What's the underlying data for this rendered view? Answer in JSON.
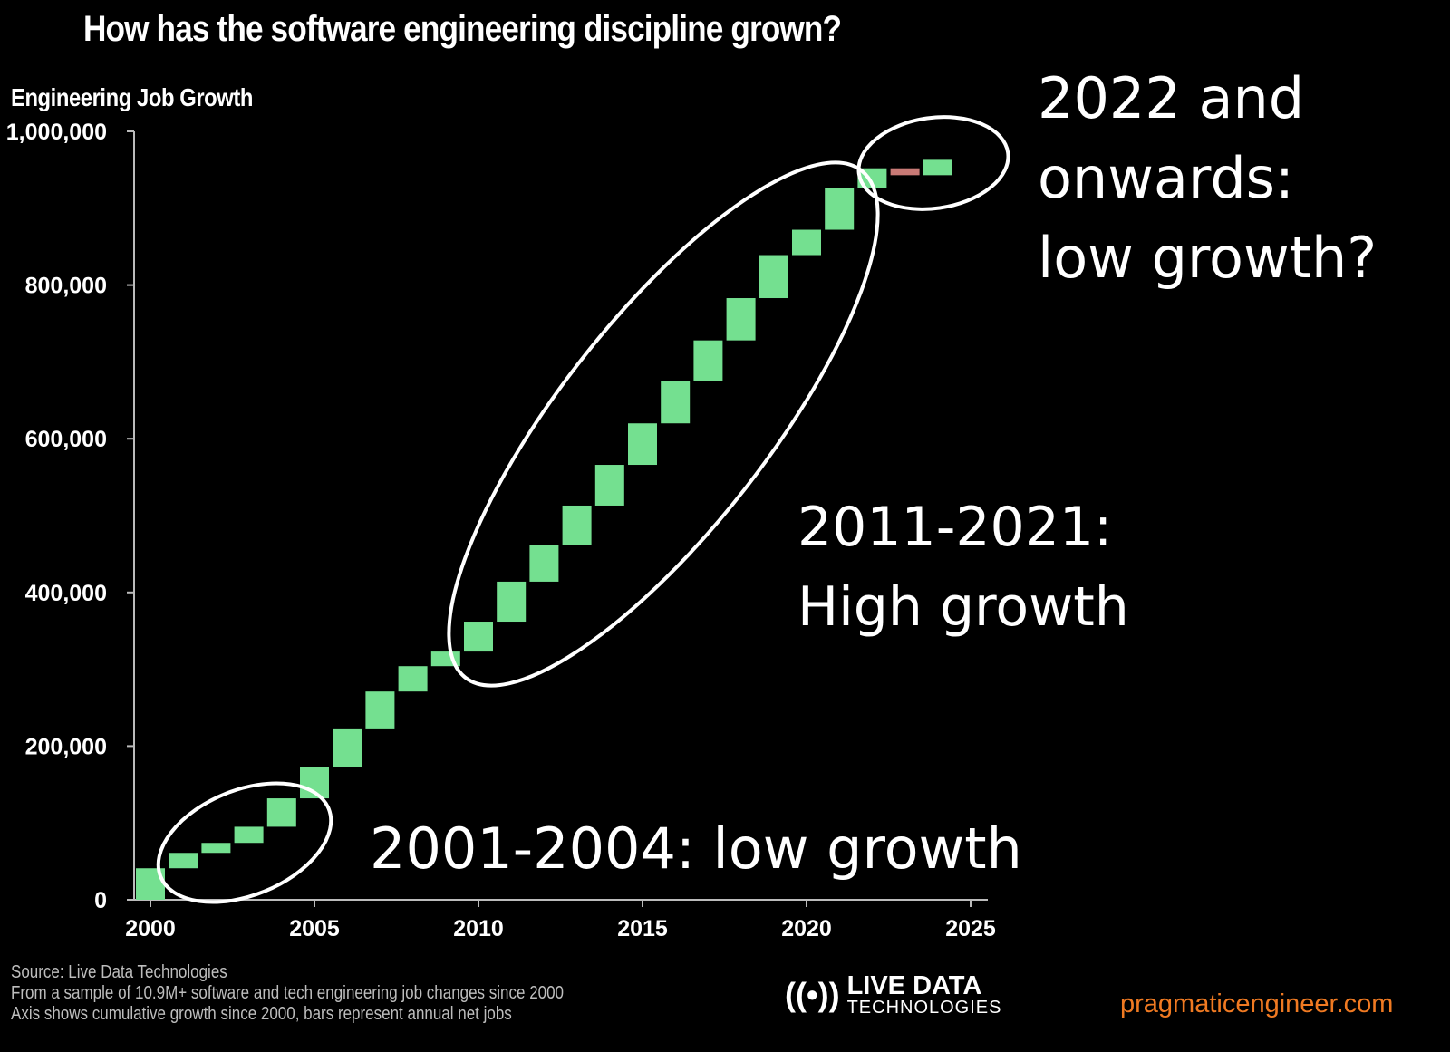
{
  "title": "How has the software engineering discipline grown?",
  "chart_data": {
    "type": "waterfall",
    "ylabel": "Engineering Job Growth",
    "xlabel": "",
    "ylim": [
      0,
      1000000
    ],
    "xlim": [
      2000,
      2025
    ],
    "yticks": [
      0,
      200000,
      400000,
      600000,
      800000,
      1000000
    ],
    "ytick_labels": [
      "0",
      "200,000",
      "400,000",
      "600,000",
      "800,000",
      "1,000,000"
    ],
    "xticks": [
      2000,
      2005,
      2010,
      2015,
      2020,
      2025
    ],
    "xtick_labels": [
      "2000",
      "2005",
      "2010",
      "2015",
      "2020",
      "2025"
    ],
    "years": [
      2000,
      2001,
      2002,
      2003,
      2004,
      2005,
      2006,
      2007,
      2008,
      2009,
      2010,
      2011,
      2012,
      2013,
      2014,
      2015,
      2016,
      2017,
      2018,
      2019,
      2020,
      2021,
      2022,
      2023,
      2024
    ],
    "annual_net_jobs": [
      41000,
      20000,
      13000,
      21000,
      37000,
      41000,
      50000,
      48000,
      33000,
      19000,
      39000,
      52000,
      48000,
      51000,
      53000,
      54000,
      55000,
      53000,
      55000,
      56000,
      33000,
      54000,
      26000,
      -9000,
      20000
    ],
    "colors": {
      "positive": "#74e090",
      "negative": "#c97a76"
    },
    "grid": false
  },
  "annotations": [
    {
      "text": "2001-2004: low growth"
    },
    {
      "lines": [
        "2011-2021:",
        "High growth"
      ]
    },
    {
      "lines": [
        "2022 and",
        "onwards:",
        "low growth?"
      ]
    }
  ],
  "footer": {
    "lines": [
      "Source: Live Data Technologies",
      "From a sample of 10.9M+ software and tech engineering job changes since 2000",
      "Axis shows cumulative growth since 2000, bars represent annual net jobs"
    ]
  },
  "logo": {
    "line1": "LIVE DATA",
    "line2": "TECHNOLOGIES",
    "glyph": "((•))"
  },
  "site": "pragmaticengineer.com"
}
